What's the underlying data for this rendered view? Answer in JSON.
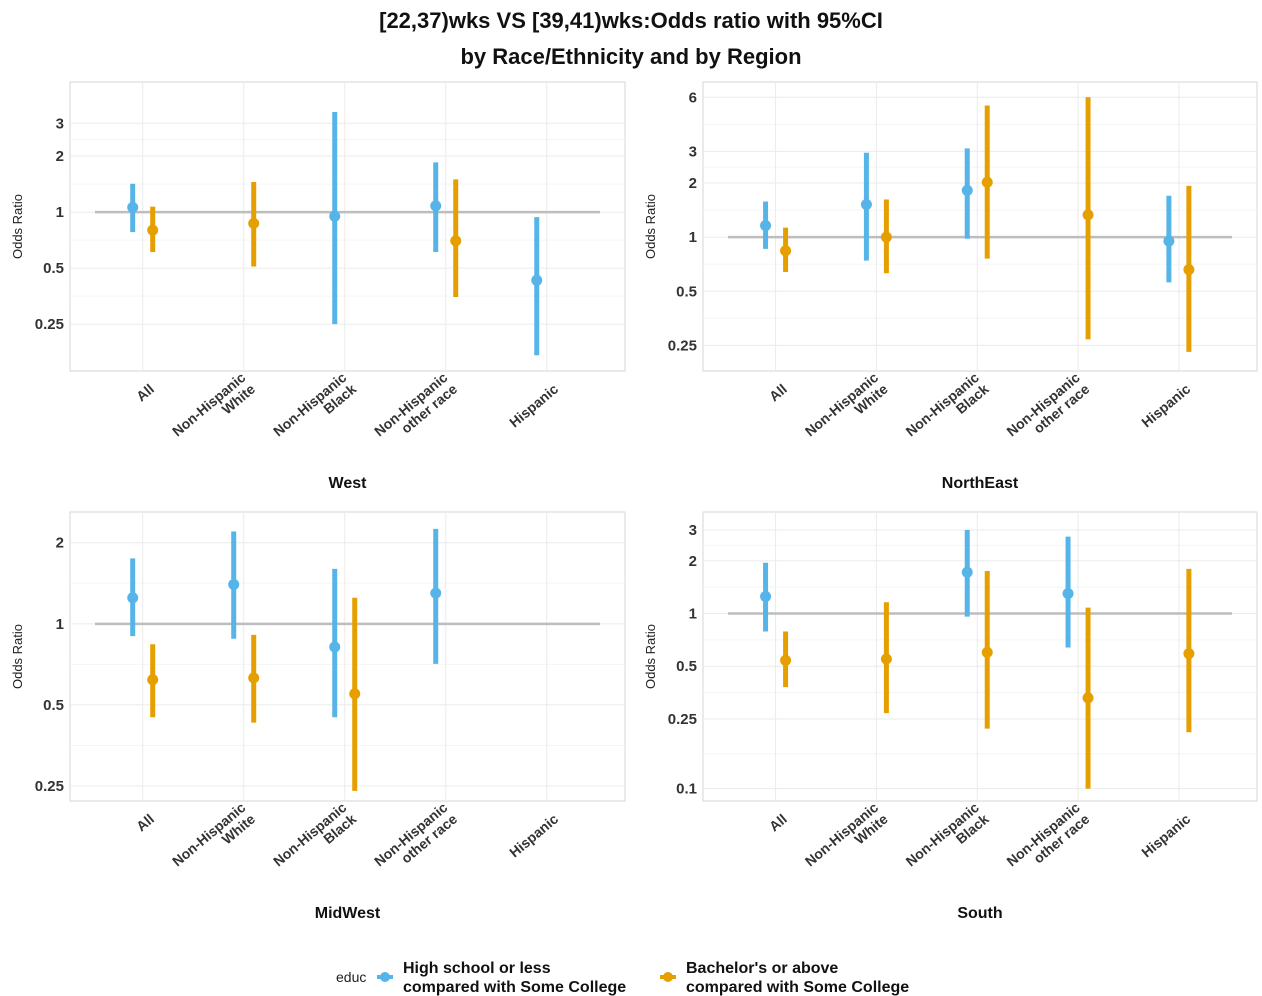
{
  "title": [
    "[22,37)wks VS [39,41)wks:Odds ratio with 95%CI",
    "by Race/Ethnicity and by Region"
  ],
  "colors": {
    "high_school": "#56B4E9",
    "bachelor": "#E69F00",
    "reference_line": "#bdbdbd"
  },
  "chart_data": [
    {
      "type": "errorbar",
      "panel": "West",
      "ylabel": "Odds Ratio",
      "yscale": "log",
      "yticks": [
        0.25,
        0.5,
        1,
        2,
        3
      ],
      "ytick_labels": [
        "0.25",
        "0.5",
        "1",
        "2",
        "3"
      ],
      "ylim": [
        0.14,
        5
      ],
      "reference_line": 1,
      "categories": [
        "All",
        "Non-Hispanic\nWhite",
        "Non-Hispanic\nBlack",
        "Non-Hispanic\nother race",
        "Hispanic"
      ],
      "series": [
        {
          "name": "High school or less\ncompared with Some College",
          "estimate": [
            1.06,
            null,
            0.95,
            1.08,
            0.43
          ],
          "lower": [
            0.78,
            null,
            0.25,
            0.61,
            0.17
          ],
          "upper": [
            1.42,
            null,
            3.45,
            1.85,
            0.94
          ]
        },
        {
          "name": "Bachelor's or above\ncompared with Some College",
          "estimate": [
            0.8,
            0.87,
            null,
            0.7,
            null
          ],
          "lower": [
            0.61,
            0.51,
            null,
            0.35,
            null
          ],
          "upper": [
            1.07,
            1.45,
            null,
            1.5,
            null
          ]
        }
      ]
    },
    {
      "type": "errorbar",
      "panel": "NorthEast",
      "ylabel": "Odds Ratio",
      "yscale": "log",
      "yticks": [
        0.25,
        0.5,
        1,
        2,
        3,
        6
      ],
      "ytick_labels": [
        "0.25",
        "0.5",
        "1",
        "2",
        "3",
        "6"
      ],
      "ylim": [
        0.18,
        7.3
      ],
      "reference_line": 1,
      "categories": [
        "All",
        "Non-Hispanic\nWhite",
        "Non-Hispanic\nBlack",
        "Non-Hispanic\nother race",
        "Hispanic"
      ],
      "series": [
        {
          "name": "High school or less\ncompared with Some College",
          "estimate": [
            1.16,
            1.52,
            1.82,
            null,
            0.95
          ],
          "lower": [
            0.86,
            0.74,
            0.98,
            null,
            0.56
          ],
          "upper": [
            1.58,
            2.95,
            3.12,
            null,
            1.7
          ]
        },
        {
          "name": "Bachelor's or above\ncompared with Some College",
          "estimate": [
            0.84,
            1.0,
            2.02,
            1.33,
            0.66
          ],
          "lower": [
            0.64,
            0.63,
            0.76,
            0.27,
            0.23
          ],
          "upper": [
            1.13,
            1.62,
            5.4,
            6.0,
            1.93
          ]
        }
      ]
    },
    {
      "type": "errorbar",
      "panel": "MidWest",
      "ylabel": "Odds Ratio",
      "yscale": "log",
      "yticks": [
        0.25,
        0.5,
        1,
        2
      ],
      "ytick_labels": [
        "0.25",
        "0.5",
        "1",
        "2"
      ],
      "ylim": [
        0.22,
        2.6
      ],
      "reference_line": 1,
      "categories": [
        "All",
        "Non-Hispanic\nWhite",
        "Non-Hispanic\nBlack",
        "Non-Hispanic\nother race",
        "Hispanic"
      ],
      "series": [
        {
          "name": "High school or less\ncompared with Some College",
          "estimate": [
            1.25,
            1.4,
            0.82,
            1.3,
            null
          ],
          "lower": [
            0.9,
            0.88,
            0.45,
            0.71,
            null
          ],
          "upper": [
            1.75,
            2.2,
            1.6,
            2.25,
            null
          ]
        },
        {
          "name": "Bachelor's or above\ncompared with Some College",
          "estimate": [
            0.62,
            0.63,
            0.55,
            null,
            null
          ],
          "lower": [
            0.45,
            0.43,
            0.24,
            null,
            null
          ],
          "upper": [
            0.84,
            0.91,
            1.25,
            null,
            null
          ]
        }
      ]
    },
    {
      "type": "errorbar",
      "panel": "South",
      "ylabel": "Odds Ratio",
      "yscale": "log",
      "yticks": [
        0.1,
        0.25,
        0.5,
        1,
        2,
        3
      ],
      "ytick_labels": [
        "0.1",
        "0.25",
        "0.5",
        "1",
        "2",
        "3"
      ],
      "ylim": [
        0.085,
        3.8
      ],
      "reference_line": 1,
      "categories": [
        "All",
        "Non-Hispanic\nWhite",
        "Non-Hispanic\nBlack",
        "Non-Hispanic\nother race",
        "Hispanic"
      ],
      "series": [
        {
          "name": "High school or less\ncompared with Some College",
          "estimate": [
            1.25,
            null,
            1.72,
            1.3,
            null
          ],
          "lower": [
            0.79,
            null,
            0.96,
            0.64,
            null
          ],
          "upper": [
            1.95,
            null,
            3.0,
            2.75,
            null
          ]
        },
        {
          "name": "Bachelor's or above\ncompared with Some College",
          "estimate": [
            0.54,
            0.55,
            0.6,
            0.33,
            0.59
          ],
          "lower": [
            0.38,
            0.27,
            0.22,
            0.1,
            0.21
          ],
          "upper": [
            0.79,
            1.16,
            1.75,
            1.08,
            1.8
          ]
        }
      ]
    }
  ],
  "legend": {
    "title": "educ",
    "items": [
      {
        "label": "High school or less\ncompared with Some College",
        "color": "#56B4E9"
      },
      {
        "label": "Bachelor's or above\ncompared with Some College",
        "color": "#E69F00"
      }
    ]
  }
}
